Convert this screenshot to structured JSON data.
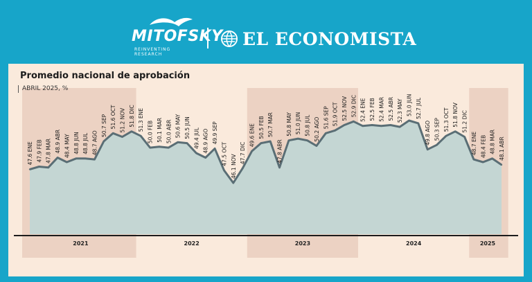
{
  "header": {
    "mitofsky": "MITOFSKY",
    "mitofsky_tagline": "REINVENTING RESEARCH",
    "eleconomista": "EL ECONOMISTA",
    "brand_color": "#17a5c9"
  },
  "chart_data": {
    "type": "area",
    "title": "Promedio nacional de aprobación",
    "subtitle": "ABRIL 2025, %",
    "ylim": [
      42,
      55
    ],
    "grid": false,
    "colors": {
      "line": "#5a6e75",
      "fill": "#c4d6d3",
      "year_band": "#ecd2c3"
    },
    "year_labels": [
      "2021",
      "2022",
      "2023",
      "2024",
      "2025"
    ],
    "points": [
      {
        "label": "47.6 ENE",
        "value": 47.6
      },
      {
        "label": "47.9 FEB",
        "value": 47.9
      },
      {
        "label": "47.8 MAR",
        "value": 47.8
      },
      {
        "label": "48.9 ABR",
        "value": 48.9
      },
      {
        "label": "48.4 MAY",
        "value": 48.4
      },
      {
        "label": "48.8 JUN",
        "value": 48.8
      },
      {
        "label": "48.8 JUL",
        "value": 48.8
      },
      {
        "label": "48.7 AGO",
        "value": 48.7
      },
      {
        "label": "50.7 SEP",
        "value": 50.7
      },
      {
        "label": "51.6 OCT",
        "value": 51.6
      },
      {
        "label": "51.2 NOV",
        "value": 51.2
      },
      {
        "label": "51.8 DIC",
        "value": 51.8
      },
      {
        "label": "51.3 ENE",
        "value": 51.3
      },
      {
        "label": "50.0 FEB",
        "value": 50.0
      },
      {
        "label": "50.1 MAR",
        "value": 50.1
      },
      {
        "label": "50.0 ABR",
        "value": 50.0
      },
      {
        "label": "50.6 MAY",
        "value": 50.6
      },
      {
        "label": "50.5 JUN",
        "value": 50.5
      },
      {
        "label": "49.4 JUL",
        "value": 49.4
      },
      {
        "label": "48.9 AGO",
        "value": 48.9
      },
      {
        "label": "49.9 SEP",
        "value": 49.9
      },
      {
        "label": "47.5 OCT",
        "value": 47.5
      },
      {
        "label": "46.1 NOV",
        "value": 46.1
      },
      {
        "label": "47.7 DIC",
        "value": 47.7
      },
      {
        "label": "49.6 ENE",
        "value": 49.6
      },
      {
        "label": "50.5 FEB",
        "value": 50.5
      },
      {
        "label": "50.7 MAR",
        "value": 50.7
      },
      {
        "label": "47.8 ABR",
        "value": 47.8
      },
      {
        "label": "50.8 MAY",
        "value": 50.8
      },
      {
        "label": "51.0 JUN",
        "value": 51.0
      },
      {
        "label": "50.8 JUL",
        "value": 50.8
      },
      {
        "label": "50.2 AGO",
        "value": 50.2
      },
      {
        "label": "51.6 SEP",
        "value": 51.6
      },
      {
        "label": "51.9 OCT",
        "value": 51.9
      },
      {
        "label": "52.5 NOV",
        "value": 52.5
      },
      {
        "label": "52.9 DIC",
        "value": 52.9
      },
      {
        "label": "52.4 ENE",
        "value": 52.4
      },
      {
        "label": "52.5 FEB",
        "value": 52.5
      },
      {
        "label": "52.4 MAR",
        "value": 52.4
      },
      {
        "label": "52.5 ABR",
        "value": 52.5
      },
      {
        "label": "52.3 MAY",
        "value": 52.3
      },
      {
        "label": "53.0 JUN",
        "value": 53.0
      },
      {
        "label": "52.7 JUL",
        "value": 52.7
      },
      {
        "label": "49.8 AGO",
        "value": 49.8
      },
      {
        "label": "50.3 SEP",
        "value": 50.3
      },
      {
        "label": "51.3 OCT",
        "value": 51.3
      },
      {
        "label": "51.8 NOV",
        "value": 51.8
      },
      {
        "label": "51.2 DIC",
        "value": 51.2
      },
      {
        "label": "48.7 ENE",
        "value": 48.7
      },
      {
        "label": "48.4 FEB",
        "value": 48.4
      },
      {
        "label": "48.8 MAR",
        "value": 48.8
      },
      {
        "label": "48.1 ABR",
        "value": 48.1
      }
    ]
  }
}
